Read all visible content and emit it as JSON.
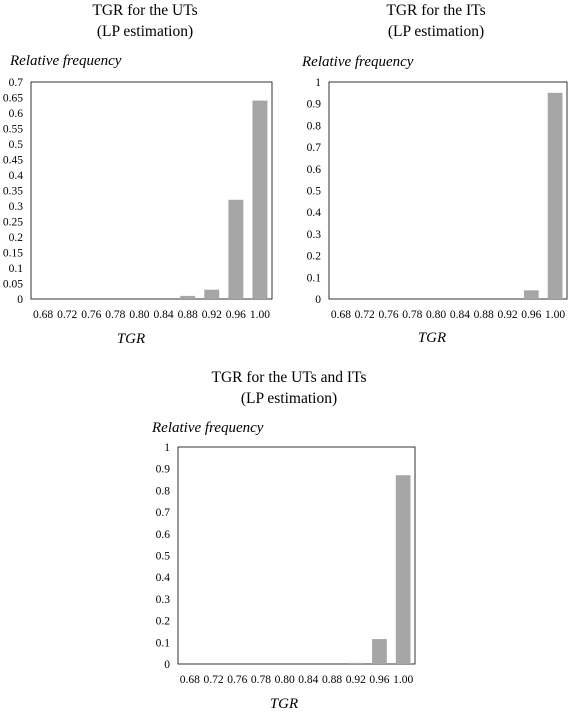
{
  "chart_data": [
    {
      "type": "bar",
      "title": [
        "TGR for the UTs",
        "(LP estimation)"
      ],
      "ylabel": "Relative frequency",
      "xlabel": "TGR",
      "categories": [
        "0.68",
        "0.72",
        "0.76",
        "0.78",
        "0.80",
        "0.84",
        "0.88",
        "0.92",
        "0.96",
        "1.00"
      ],
      "values": [
        0,
        0,
        0,
        0,
        0,
        0,
        0.01,
        0.03,
        0.32,
        0.64
      ],
      "ylim": [
        0,
        0.7
      ],
      "yticks": [
        "0",
        "0.05",
        "0.1",
        "0.15",
        "0.2",
        "0.25",
        "0.3",
        "0.35",
        "0.4",
        "0.45",
        "0.5",
        "0.55",
        "0.6",
        "0.65",
        "0.7"
      ],
      "grid": false,
      "color": "#a6a6a6"
    },
    {
      "type": "bar",
      "title": [
        "TGR for the ITs",
        "(LP estimation)"
      ],
      "ylabel": "Relative frequency",
      "xlabel": "TGR",
      "categories": [
        "0.68",
        "0.72",
        "0.76",
        "0.78",
        "0.80",
        "0.84",
        "0.88",
        "0.92",
        "0.96",
        "1.00"
      ],
      "values": [
        0,
        0,
        0,
        0,
        0,
        0,
        0,
        0,
        0.04,
        0.95
      ],
      "ylim": [
        0,
        1
      ],
      "yticks": [
        "0",
        "0.1",
        "0.2",
        "0.3",
        "0.4",
        "0.5",
        "0.6",
        "0.7",
        "0.8",
        "0.9",
        "1"
      ],
      "grid": false,
      "color": "#a6a6a6"
    },
    {
      "type": "bar",
      "title": [
        "TGR for the UTs and ITs",
        "(LP estimation)"
      ],
      "ylabel": "Relative frequency",
      "xlabel": "TGR",
      "categories": [
        "0.68",
        "0.72",
        "0.76",
        "0.78",
        "0.80",
        "0.84",
        "0.88",
        "0.92",
        "0.96",
        "1.00"
      ],
      "values": [
        0,
        0,
        0,
        0,
        0,
        0,
        0,
        0.005,
        0.115,
        0.87
      ],
      "ylim": [
        0,
        1
      ],
      "yticks": [
        "0",
        "0.1",
        "0.2",
        "0.3",
        "0.4",
        "0.5",
        "0.6",
        "0.7",
        "0.8",
        "0.9",
        "1"
      ],
      "grid": false,
      "color": "#a6a6a6"
    }
  ]
}
